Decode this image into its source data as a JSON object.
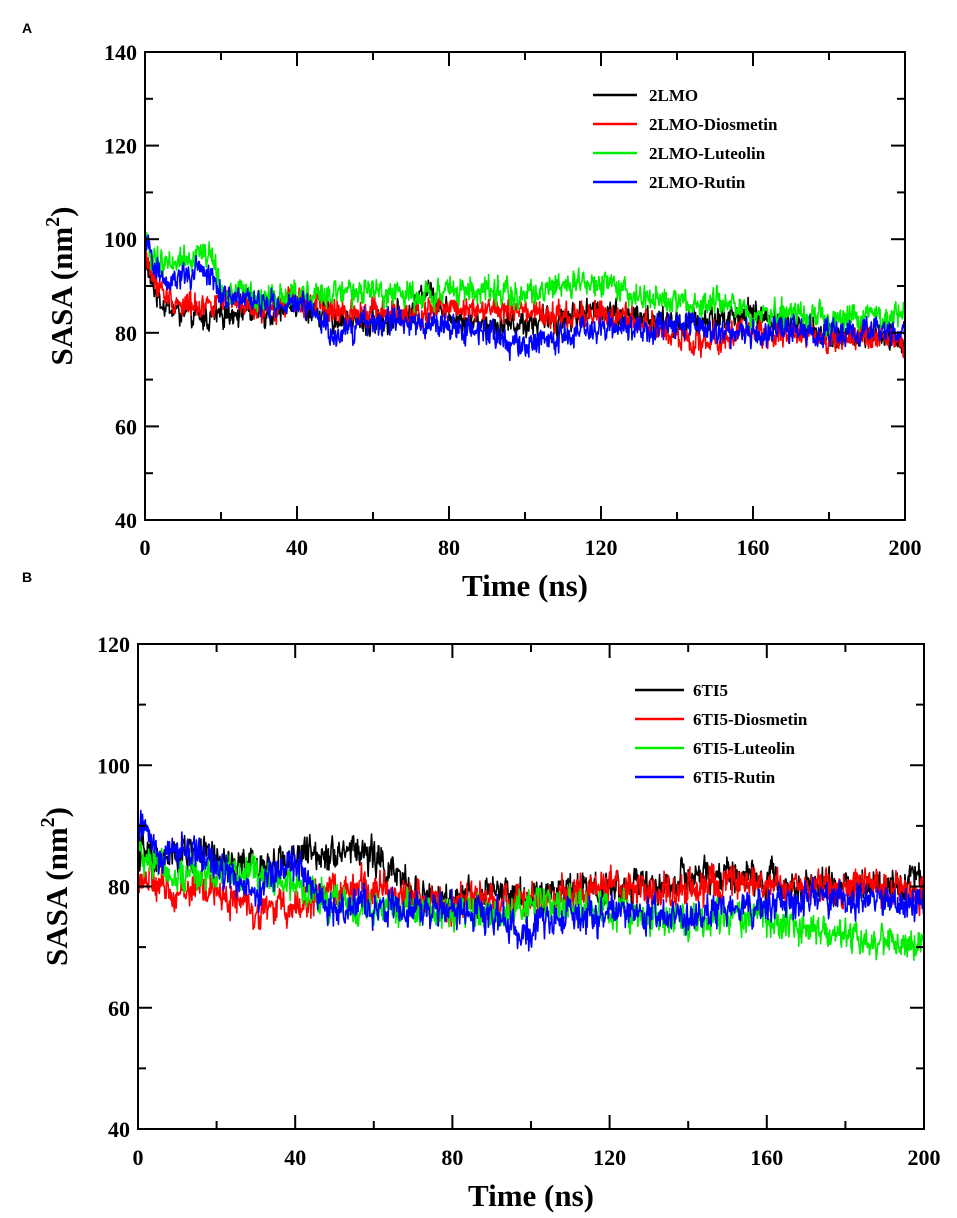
{
  "figure": {
    "panels": [
      "A",
      "B"
    ]
  },
  "chart_data": [
    {
      "panel": "A",
      "type": "line",
      "title": "",
      "xlabel": "Time (ns)",
      "ylabel": "SASA (nm",
      "ylabel_sup": "2",
      "ylabel_close": ")",
      "xlim": [
        0,
        200
      ],
      "ylim": [
        40,
        140
      ],
      "xticks": [
        0,
        40,
        80,
        120,
        160,
        200
      ],
      "yticks": [
        40,
        60,
        80,
        100,
        120,
        140
      ],
      "legend_position": "top-right",
      "series": [
        {
          "name": "2LMO",
          "color": "#000000",
          "x": [
            0,
            2,
            5,
            10,
            15,
            20,
            25,
            30,
            40,
            50,
            60,
            70,
            74,
            80,
            90,
            100,
            110,
            120,
            130,
            140,
            150,
            160,
            170,
            180,
            190,
            200
          ],
          "y": [
            96,
            90,
            86,
            84,
            83,
            84,
            85,
            84,
            86,
            83,
            82,
            84,
            90,
            84,
            82,
            82,
            83,
            85,
            83,
            82,
            83,
            84,
            82,
            80,
            79,
            78
          ]
        },
        {
          "name": "2LMO-Diosmetin",
          "color": "#ff0000",
          "x": [
            0,
            2,
            5,
            10,
            15,
            20,
            25,
            30,
            40,
            50,
            60,
            70,
            80,
            90,
            100,
            110,
            120,
            130,
            140,
            145,
            150,
            160,
            170,
            180,
            190,
            200
          ],
          "y": [
            97,
            92,
            88,
            86,
            86,
            87,
            86,
            84,
            88,
            84,
            85,
            83,
            86,
            85,
            84,
            83,
            84,
            82,
            80,
            77,
            79,
            80,
            80,
            79,
            79,
            78
          ]
        },
        {
          "name": "2LMO-Luteolin",
          "color": "#00ee00",
          "x": [
            0,
            2,
            5,
            10,
            15,
            18,
            20,
            25,
            30,
            40,
            50,
            60,
            70,
            80,
            90,
            100,
            110,
            120,
            130,
            140,
            150,
            160,
            170,
            180,
            190,
            200
          ],
          "y": [
            100,
            96,
            95,
            96,
            97,
            96,
            88,
            89,
            87,
            88,
            88,
            89,
            88,
            89,
            89,
            88,
            90,
            90,
            88,
            86,
            87,
            84,
            84,
            83,
            84,
            83
          ]
        },
        {
          "name": "2LMO-Rutin",
          "color": "#0000ff",
          "x": [
            0,
            2,
            5,
            10,
            15,
            18,
            20,
            25,
            30,
            40,
            45,
            50,
            60,
            70,
            80,
            90,
            100,
            110,
            120,
            130,
            140,
            150,
            160,
            170,
            180,
            190,
            200
          ],
          "y": [
            99,
            95,
            92,
            92,
            93,
            92,
            88,
            88,
            86,
            86,
            84,
            79,
            83,
            82,
            81,
            80,
            77,
            79,
            81,
            81,
            82,
            80,
            80,
            81,
            79,
            80,
            80
          ]
        }
      ]
    },
    {
      "panel": "B",
      "type": "line",
      "title": "",
      "xlabel": "Time (ns)",
      "ylabel": "SASA (nm",
      "ylabel_sup": "2",
      "ylabel_close": ")",
      "xlim": [
        0,
        200
      ],
      "ylim": [
        40,
        120
      ],
      "xticks": [
        0,
        40,
        80,
        120,
        160,
        200
      ],
      "yticks": [
        40,
        60,
        80,
        100,
        120
      ],
      "legend_position": "top-right",
      "series": [
        {
          "name": "6TI5",
          "color": "#000000",
          "x": [
            0,
            5,
            10,
            15,
            20,
            30,
            40,
            50,
            55,
            60,
            65,
            70,
            80,
            90,
            100,
            110,
            120,
            130,
            140,
            150,
            160,
            170,
            180,
            190,
            200
          ],
          "y": [
            86,
            84,
            85,
            86,
            84,
            83,
            85,
            86,
            86,
            85,
            82,
            79,
            77,
            79,
            78,
            80,
            80,
            80,
            81,
            82,
            81,
            80,
            80,
            80,
            82
          ]
        },
        {
          "name": "6TI5-Diosmetin",
          "color": "#ff0000",
          "x": [
            0,
            5,
            10,
            15,
            20,
            30,
            40,
            50,
            60,
            70,
            80,
            90,
            100,
            110,
            120,
            130,
            140,
            150,
            160,
            170,
            180,
            190,
            200
          ],
          "y": [
            82,
            80,
            79,
            80,
            79,
            76,
            77,
            79,
            80,
            78,
            77,
            78,
            77,
            79,
            80,
            79,
            80,
            80,
            80,
            80,
            80,
            80,
            79
          ]
        },
        {
          "name": "6TI5-Luteolin",
          "color": "#00ee00",
          "x": [
            0,
            5,
            10,
            15,
            20,
            30,
            40,
            50,
            60,
            70,
            80,
            90,
            100,
            110,
            120,
            130,
            140,
            150,
            160,
            170,
            180,
            190,
            200
          ],
          "y": [
            86,
            84,
            82,
            82,
            83,
            82,
            80,
            77,
            76,
            77,
            75,
            76,
            77,
            77,
            76,
            75,
            74,
            75,
            75,
            73,
            72,
            71,
            70
          ]
        },
        {
          "name": "6TI5-Rutin",
          "color": "#0000ff",
          "x": [
            0,
            2,
            5,
            10,
            15,
            20,
            30,
            40,
            45,
            50,
            60,
            70,
            80,
            90,
            100,
            110,
            120,
            130,
            140,
            150,
            160,
            170,
            180,
            190,
            200
          ],
          "y": [
            89,
            90,
            86,
            86,
            85,
            83,
            79,
            84,
            79,
            76,
            77,
            76,
            76,
            75,
            73,
            76,
            75,
            76,
            75,
            76,
            77,
            78,
            78,
            78,
            77
          ]
        }
      ]
    }
  ]
}
